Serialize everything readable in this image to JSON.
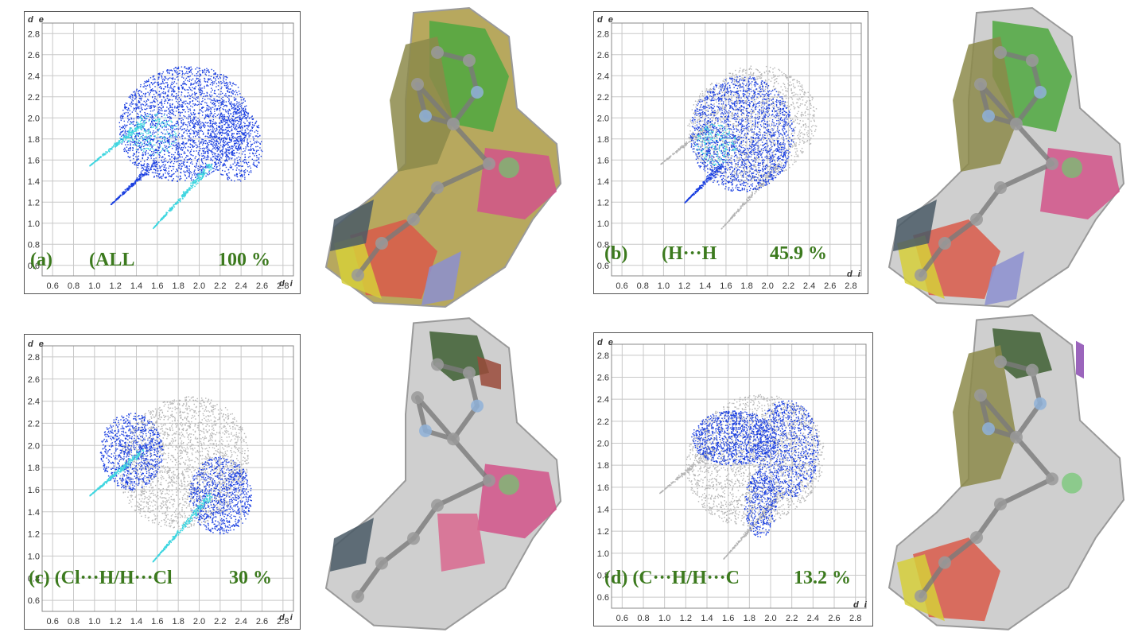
{
  "axes": {
    "x_name": "d i",
    "y_name": "d e",
    "x_ticks": [
      "0.6",
      "0.8",
      "1.0",
      "1.2",
      "1.4",
      "1.6",
      "1.8",
      "2.0",
      "2.2",
      "2.4",
      "2.6",
      "2.8"
    ],
    "y_ticks": [
      "2.8",
      "2.6",
      "2.4",
      "2.2",
      "2.0",
      "1.8",
      "1.6",
      "1.4",
      "1.2",
      "1.0",
      "0.8",
      "0.6"
    ]
  },
  "colors": {
    "label_green": "#3c7a1e",
    "points_blue": "#1a3fe0",
    "points_cyan": "#3fd6e0",
    "points_grey": "#b5b5b5",
    "surface_grey": "#cfcfcf"
  },
  "panels": [
    {
      "letter": "(a)",
      "interaction": "(ALL",
      "percent": "100 %",
      "surface_patches": [
        "green",
        "olive",
        "magenta",
        "red",
        "yellow",
        "slate",
        "lavender"
      ]
    },
    {
      "letter": "(b)",
      "interaction": "(H···H",
      "percent": "45.9 %",
      "surface_patches": [
        "green",
        "olive",
        "magenta",
        "red",
        "yellow",
        "slate",
        "lavender"
      ]
    },
    {
      "letter": "(c) (Cl···H/H···Cl",
      "interaction": "",
      "percent": "30 %",
      "surface_patches": [
        "dark-green",
        "brown",
        "magenta",
        "pink",
        "slate"
      ]
    },
    {
      "letter": "(d) (C···H/H···C",
      "interaction": "",
      "percent": "13.2 %",
      "surface_patches": [
        "dark-green",
        "olive",
        "purple",
        "red",
        "yellow"
      ]
    }
  ]
}
